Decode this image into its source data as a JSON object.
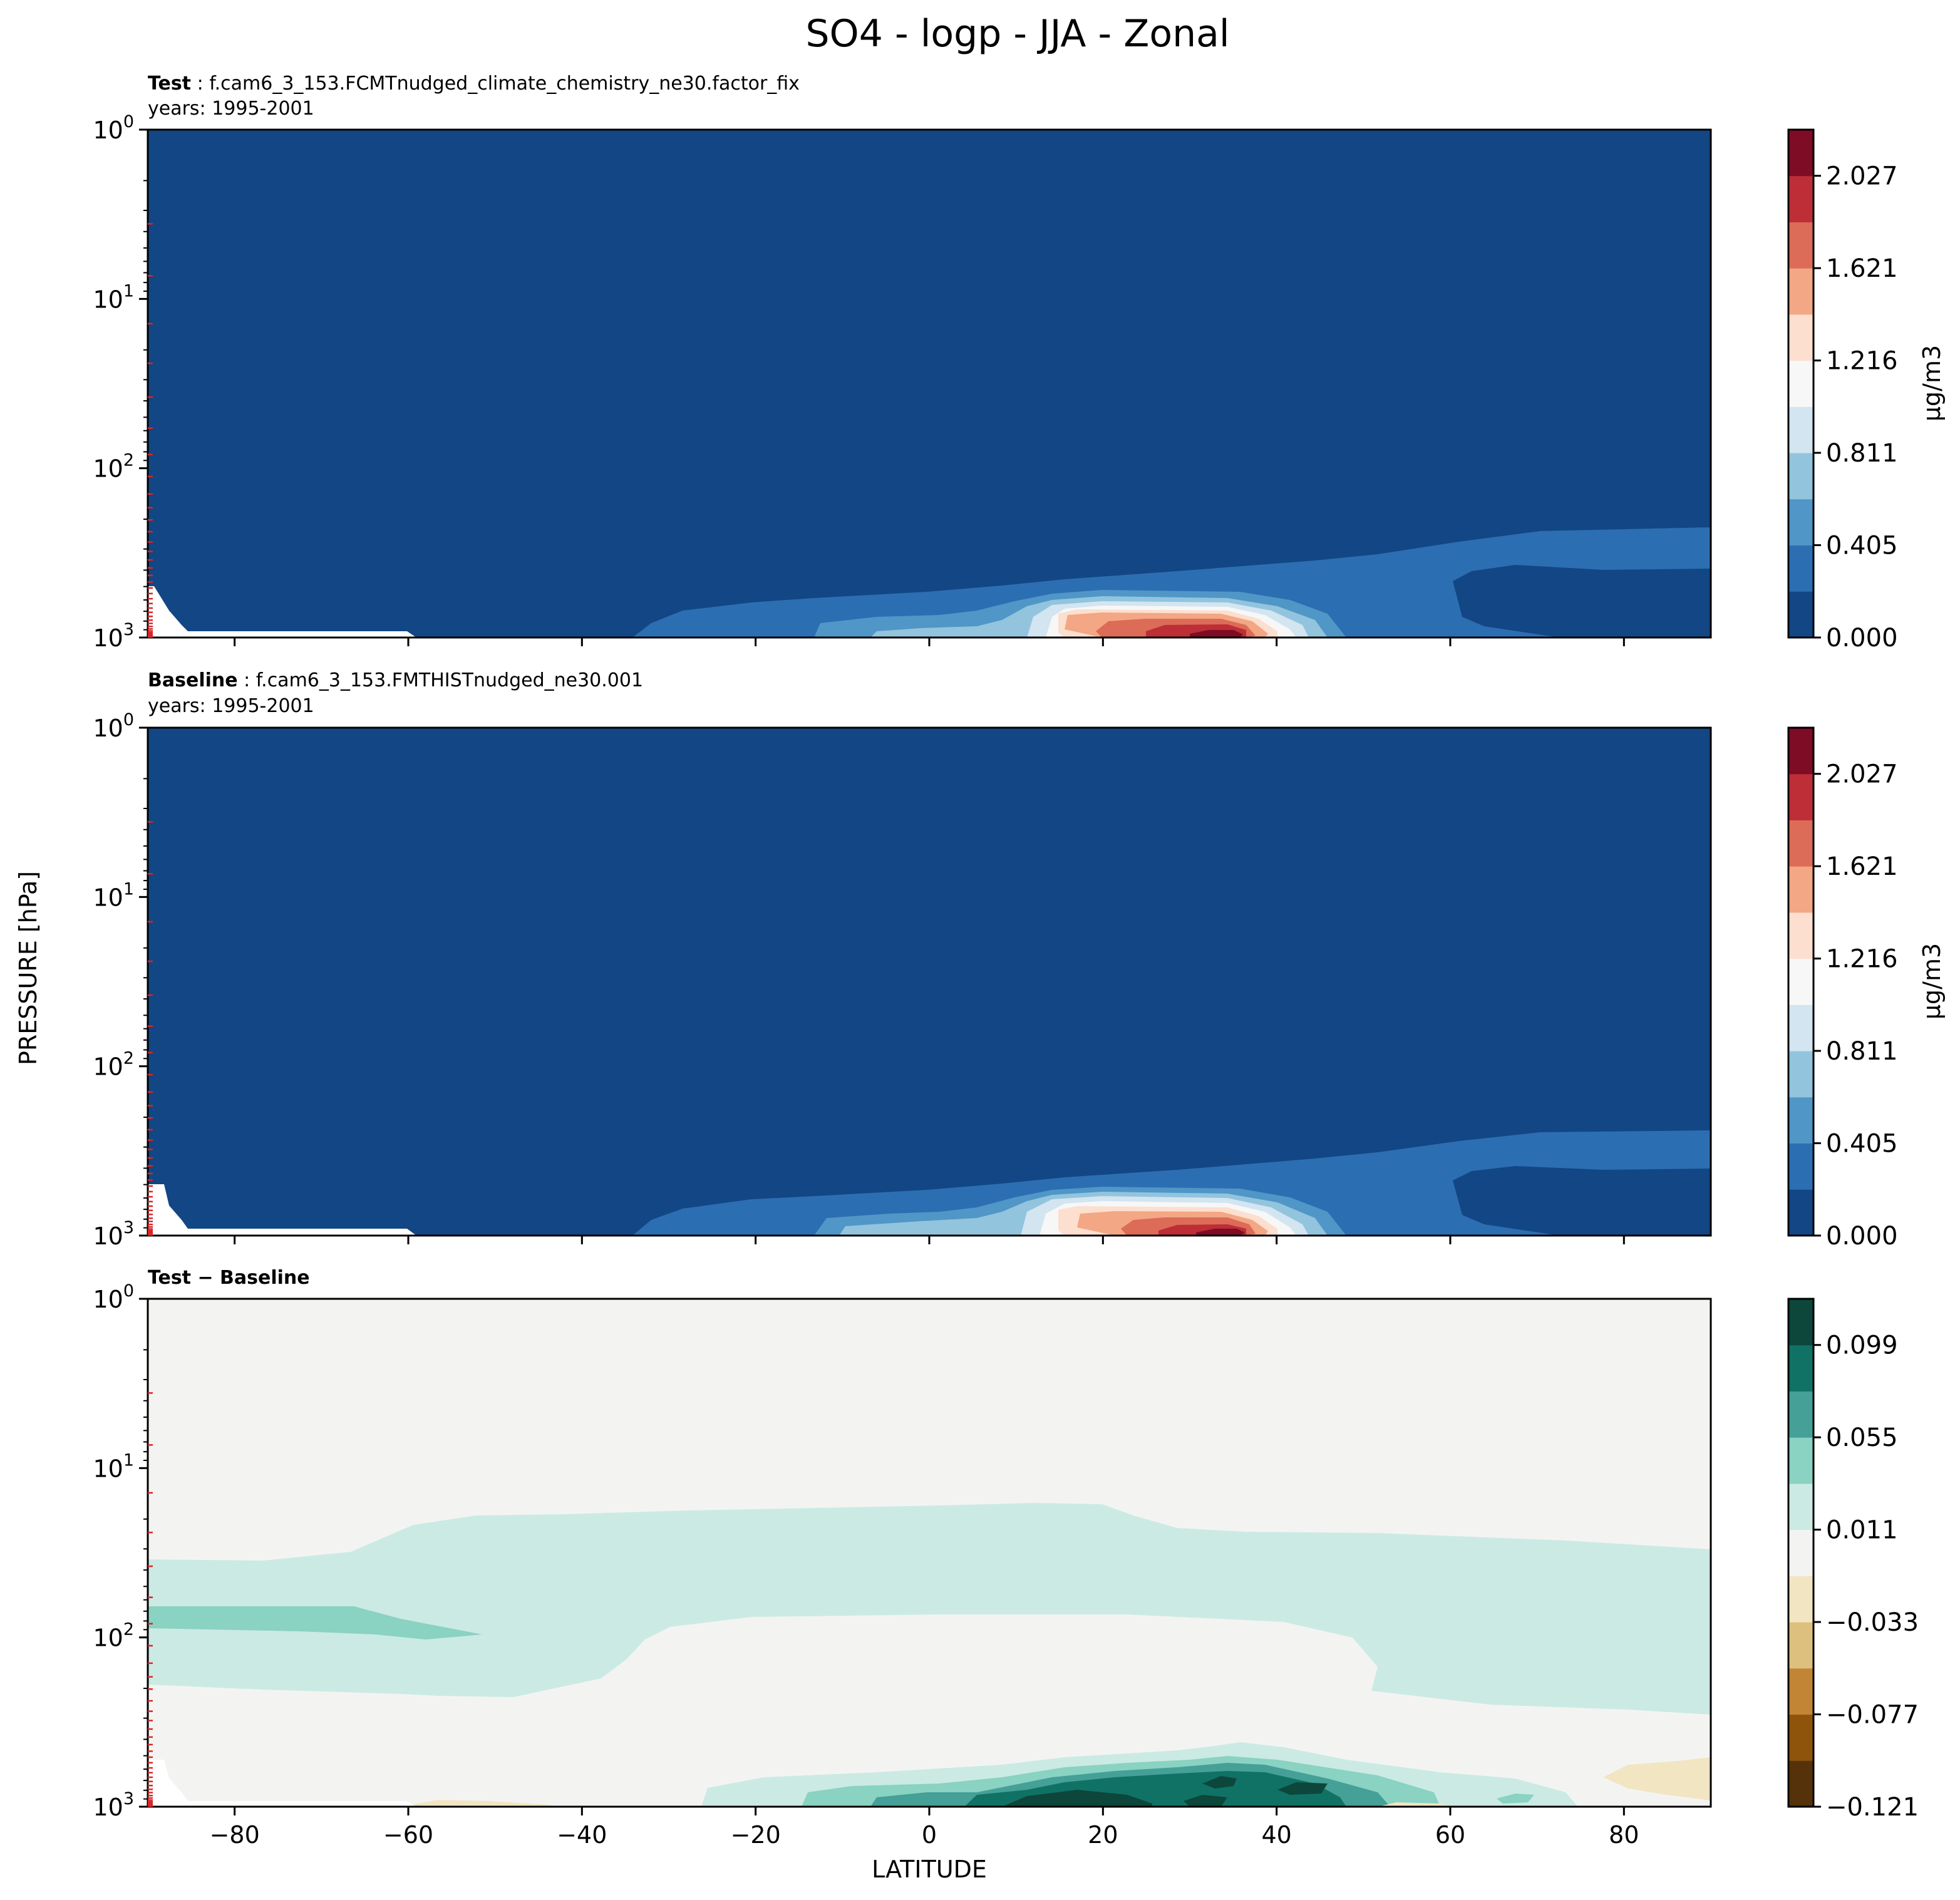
{
  "figure": {
    "title": "SO4 - logp - JJA - Zonal",
    "xlabel": "LATITUDE",
    "ylabel": "PRESSURE [hPa]"
  },
  "panels": [
    {
      "id": "test",
      "title_bold": "Test",
      "title_rest": " : f.cam6_3_153.FCMTnudged_climate_chemistry_ne30.factor_fix",
      "years": "years: 1995-2001",
      "unit": "μg/m3"
    },
    {
      "id": "baseline",
      "title_bold": "Baseline",
      "title_rest": " : f.cam6_3_153.FMTHISTnudged_ne30.001",
      "years": "years: 1995-2001",
      "unit": "μg/m3"
    },
    {
      "id": "diff",
      "title_bold": "Test − Baseline",
      "title_rest": "",
      "years": "",
      "unit": ""
    }
  ],
  "colors": {
    "abs_levels": [
      "#134684",
      "#2c6eb2",
      "#5096c7",
      "#92c4de",
      "#d2e5f0",
      "#f7f7f7",
      "#fcdfcf",
      "#f3a784",
      "#dc6b57",
      "#bd2e37",
      "#7e0c25"
    ],
    "diff_levels": [
      "#553209",
      "#8f540b",
      "#c28535",
      "#ddc07d",
      "#f2e5c1",
      "#f3f4f2",
      "#cbeae3",
      "#8ad2c2",
      "#45a097",
      "#107264",
      "#0d463b"
    ]
  },
  "chart_data": [
    {
      "type": "contour",
      "panel": "test",
      "x": {
        "min": -90,
        "max": 90,
        "ticks": [
          "−80",
          "−60",
          "−40",
          "−20",
          "0",
          "20",
          "40",
          "60",
          "80"
        ]
      },
      "y": {
        "scale": "log",
        "range_hPa": [
          1000,
          1
        ],
        "inverted": true,
        "ticks": [
          "0",
          "1",
          "2",
          "3"
        ]
      },
      "colorbar": {
        "min": 0.0,
        "max": 2.23,
        "ticks": [
          "0.000",
          "0.405",
          "0.811",
          "1.216",
          "1.621",
          "2.027"
        ]
      },
      "features": "background 0.0-0.2; 0.2-0.4 layer from ~-35 to 90 lat below ~250 hPa; maximum ~2.2 near 35N at surface"
    },
    {
      "type": "contour",
      "panel": "baseline",
      "x": {
        "min": -90,
        "max": 90,
        "ticks": [
          "−80",
          "−60",
          "−40",
          "−20",
          "0",
          "20",
          "40",
          "60",
          "80"
        ]
      },
      "y": {
        "scale": "log",
        "range_hPa": [
          1000,
          1
        ],
        "inverted": true,
        "ticks": [
          "0",
          "1",
          "2",
          "3"
        ]
      },
      "colorbar": {
        "min": 0.0,
        "max": 2.23,
        "ticks": [
          "0.000",
          "0.405",
          "0.811",
          "1.216",
          "1.621",
          "2.027"
        ]
      },
      "features": "similar to test; maximum ~2.2 near 35N at surface"
    },
    {
      "type": "contour",
      "panel": "diff",
      "x": {
        "min": -90,
        "max": 90,
        "ticks": [
          "−80",
          "−60",
          "−40",
          "−20",
          "0",
          "20",
          "40",
          "60",
          "80"
        ]
      },
      "y": {
        "scale": "log",
        "range_hPa": [
          1000,
          1
        ],
        "inverted": true,
        "ticks": [
          "0",
          "1",
          "2",
          "3"
        ]
      },
      "colorbar": {
        "min": -0.121,
        "max": 0.121,
        "ticks": [
          "−0.121",
          "−0.077",
          "−0.033",
          "0.011",
          "0.055",
          "0.099"
        ]
      },
      "features": "mostly near zero; 0.011-0.033 band between ~20 and ~250 hPa; 0.033-0.055 near 70 hPa south of 50S; up to ~0.12 near surface 5N-50N; slight negative near 80N surface"
    }
  ]
}
